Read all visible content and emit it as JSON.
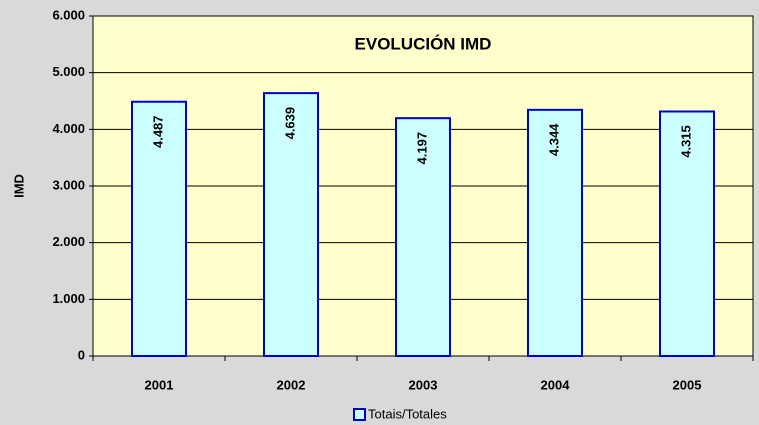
{
  "chart_data": {
    "type": "bar",
    "title": "EVOLUCIÓN IMD",
    "y_label": "IMD",
    "categories": [
      "2001",
      "2002",
      "2003",
      "2004",
      "2005"
    ],
    "series": [
      {
        "name": "Totais/Totales",
        "color": "#ccffff",
        "edge_color": "#0000cc",
        "values": [
          4487,
          4639,
          4197,
          4344,
          4315
        ],
        "value_labels": [
          "4.487",
          "4.639",
          "4.197",
          "4.344",
          "4.315"
        ]
      }
    ],
    "ylim": [
      0,
      6000
    ],
    "yticks": [
      0,
      {
        "value": 1000,
        "label": "1.000"
      },
      {
        "value": 2000,
        "label": "2.000"
      },
      {
        "value": 3000,
        "label": "3.000"
      },
      {
        "value": 4000,
        "label": "4.000"
      },
      {
        "value": 5000,
        "label": "5.000"
      },
      {
        "value": 6000,
        "label": "6.000"
      }
    ],
    "grid": true,
    "legend": "bottom"
  }
}
